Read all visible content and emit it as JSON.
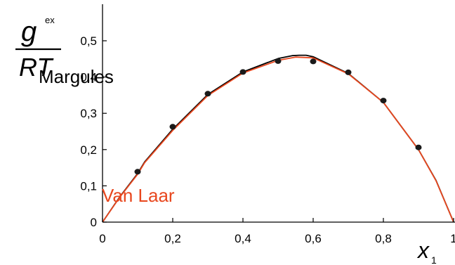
{
  "chart_data": {
    "type": "line",
    "title": "",
    "xlabel": "x",
    "xlabel_subscript": "1",
    "ylabel": {
      "numerator": "g",
      "numerator_superscript": "ex",
      "denominator": "RT"
    },
    "xlim": [
      0,
      1
    ],
    "ylim": [
      0,
      0.6
    ],
    "grid": false,
    "x_tick_labels": [
      "0",
      "0,2",
      "0,4",
      "0,6",
      "0,8",
      "1"
    ],
    "x_tick_values": [
      0,
      0.2,
      0.4,
      0.6,
      0.8,
      1.0
    ],
    "y_tick_labels": [
      "0",
      "0,1",
      "0,2",
      "0,3",
      "0,4",
      "0,5"
    ],
    "y_tick_values": [
      0,
      0.1,
      0.2,
      0.3,
      0.4,
      0.5
    ],
    "series": [
      {
        "name": "Margules",
        "kind": "line",
        "color": "#000000",
        "x": [
          0,
          0.05,
          0.1,
          0.12,
          0.2,
          0.3,
          0.4,
          0.5,
          0.52,
          0.54,
          0.56,
          0.58,
          0.6,
          0.7,
          0.8,
          0.9,
          0.95,
          1.0
        ],
        "y": [
          0,
          0.071,
          0.134,
          0.166,
          0.256,
          0.352,
          0.414,
          0.451,
          0.455,
          0.459,
          0.46,
          0.46,
          0.456,
          0.41,
          0.33,
          0.2,
          0.115,
          0
        ]
      },
      {
        "name": "Van Laar",
        "kind": "line",
        "color": "#e8471e",
        "x": [
          0,
          0.05,
          0.1,
          0.12,
          0.2,
          0.3,
          0.4,
          0.5,
          0.55,
          0.6,
          0.7,
          0.8,
          0.9,
          0.95,
          1.0
        ],
        "y": [
          0,
          0.07,
          0.132,
          0.164,
          0.253,
          0.349,
          0.411,
          0.446,
          0.455,
          0.453,
          0.409,
          0.33,
          0.2,
          0.114,
          0
        ]
      },
      {
        "name": "",
        "kind": "scatter",
        "color": "#1a1a1a",
        "x": [
          0.1,
          0.2,
          0.3,
          0.4,
          0.5,
          0.6,
          0.7,
          0.8,
          0.9
        ],
        "y": [
          0.139,
          0.263,
          0.354,
          0.414,
          0.444,
          0.443,
          0.413,
          0.335,
          0.206
        ]
      }
    ],
    "annotations": [
      {
        "text": "Margules",
        "color": "#000000"
      },
      {
        "text": "Van Laar",
        "color": "#e8471e"
      }
    ]
  }
}
